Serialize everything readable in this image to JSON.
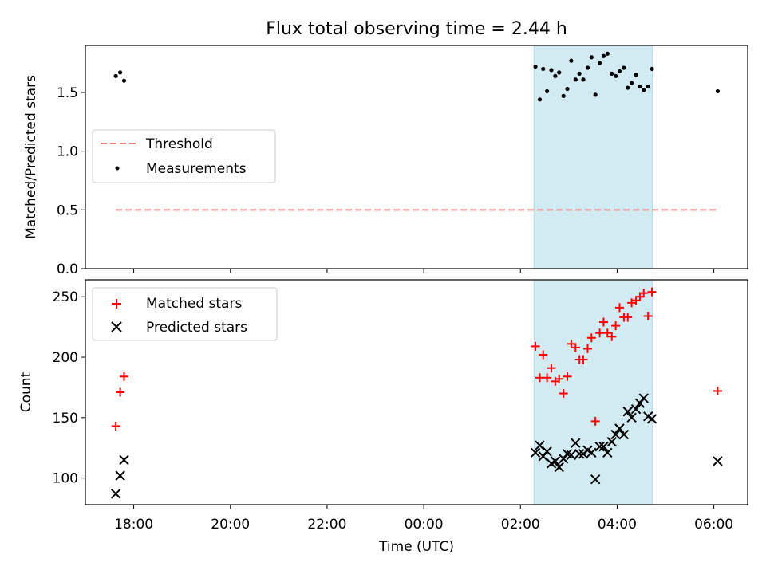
{
  "title": "Flux total observing time = 2.44 h",
  "xlabel": "Time (UTC)",
  "colors": {
    "threshold": "#f08080",
    "measurements": "#000000",
    "matched": "#ff0000",
    "predicted": "#000000",
    "shade": "#add8e6"
  },
  "chart_data": [
    {
      "type": "scatter",
      "panel": "top",
      "ylabel": "Matched/Predicted stars",
      "ylim": [
        0,
        1.9
      ],
      "yticks": [
        0.0,
        0.5,
        1.0,
        1.5
      ],
      "ytick_labels": [
        "0.0",
        "0.5",
        "1.0",
        "1.5"
      ],
      "x_hour_range": [
        17.0,
        30.7
      ],
      "shaded_span_hours": [
        26.28,
        28.73
      ],
      "legend_position": "center-left",
      "legend": [
        {
          "label": "Threshold",
          "marker": "dashed-line"
        },
        {
          "label": "Measurements",
          "marker": "dot"
        }
      ],
      "series": [
        {
          "name": "Threshold",
          "style": "dashed",
          "x_hours": [
            17.63,
            30.08
          ],
          "y": [
            0.5,
            0.5
          ]
        },
        {
          "name": "Measurements",
          "style": "dot",
          "x_hours": [
            17.63,
            17.72,
            17.8,
            26.31,
            26.4,
            26.47,
            26.55,
            26.64,
            26.72,
            26.8,
            26.89,
            26.97,
            27.05,
            27.14,
            27.22,
            27.3,
            27.39,
            27.47,
            27.55,
            27.64,
            27.72,
            27.8,
            27.89,
            27.97,
            28.05,
            28.14,
            28.22,
            28.3,
            28.39,
            28.47,
            28.55,
            28.64,
            28.72,
            30.08
          ],
          "y": [
            1.64,
            1.67,
            1.6,
            1.72,
            1.44,
            1.7,
            1.51,
            1.69,
            1.64,
            1.67,
            1.47,
            1.53,
            1.77,
            1.61,
            1.66,
            1.61,
            1.71,
            1.8,
            1.48,
            1.75,
            1.81,
            1.83,
            1.66,
            1.64,
            1.68,
            1.71,
            1.54,
            1.58,
            1.65,
            1.55,
            1.52,
            1.55,
            1.7,
            1.51
          ]
        }
      ]
    },
    {
      "type": "scatter",
      "panel": "bottom",
      "ylabel": "Count",
      "ylim": [
        78,
        264
      ],
      "yticks": [
        100,
        150,
        200,
        250
      ],
      "ytick_labels": [
        "100",
        "150",
        "200",
        "250"
      ],
      "x_hour_range": [
        17.0,
        30.7
      ],
      "xticks_hours": [
        18,
        20,
        22,
        24,
        26,
        28,
        30
      ],
      "xtick_labels": [
        "18:00",
        "20:00",
        "22:00",
        "00:00",
        "02:00",
        "04:00",
        "06:00"
      ],
      "shaded_span_hours": [
        26.28,
        28.73
      ],
      "legend_position": "top-left",
      "legend": [
        {
          "label": "Matched stars",
          "marker": "plus"
        },
        {
          "label": "Predicted stars",
          "marker": "x"
        }
      ],
      "series": [
        {
          "name": "Matched stars",
          "style": "plus",
          "x_hours": [
            17.63,
            17.72,
            17.8,
            26.31,
            26.4,
            26.47,
            26.55,
            26.64,
            26.72,
            26.8,
            26.89,
            26.97,
            27.05,
            27.14,
            27.22,
            27.3,
            27.39,
            27.47,
            27.55,
            27.64,
            27.72,
            27.8,
            27.89,
            27.97,
            28.05,
            28.14,
            28.22,
            28.3,
            28.39,
            28.47,
            28.55,
            28.64,
            28.72,
            30.08
          ],
          "y": [
            143,
            171,
            184,
            209,
            183,
            202,
            183,
            191,
            180,
            182,
            170,
            184,
            211,
            208,
            198,
            198,
            207,
            216,
            147,
            220,
            229,
            220,
            217,
            226,
            241,
            233,
            233,
            245,
            247,
            250,
            253,
            234,
            254,
            172
          ]
        },
        {
          "name": "Predicted stars",
          "style": "x",
          "x_hours": [
            17.63,
            17.72,
            17.8,
            26.31,
            26.4,
            26.47,
            26.55,
            26.64,
            26.72,
            26.8,
            26.89,
            26.97,
            27.05,
            27.14,
            27.22,
            27.3,
            27.39,
            27.47,
            27.55,
            27.64,
            27.72,
            27.8,
            27.89,
            27.97,
            28.05,
            28.14,
            28.22,
            28.3,
            28.39,
            28.47,
            28.55,
            28.64,
            28.72,
            30.08
          ],
          "y": [
            87,
            102,
            115,
            121,
            127,
            118,
            122,
            112,
            114,
            109,
            116,
            120,
            119,
            129,
            120,
            120,
            123,
            121,
            99,
            126,
            126,
            121,
            130,
            136,
            141,
            136,
            155,
            150,
            157,
            162,
            166,
            151,
            149,
            114
          ]
        }
      ]
    }
  ]
}
